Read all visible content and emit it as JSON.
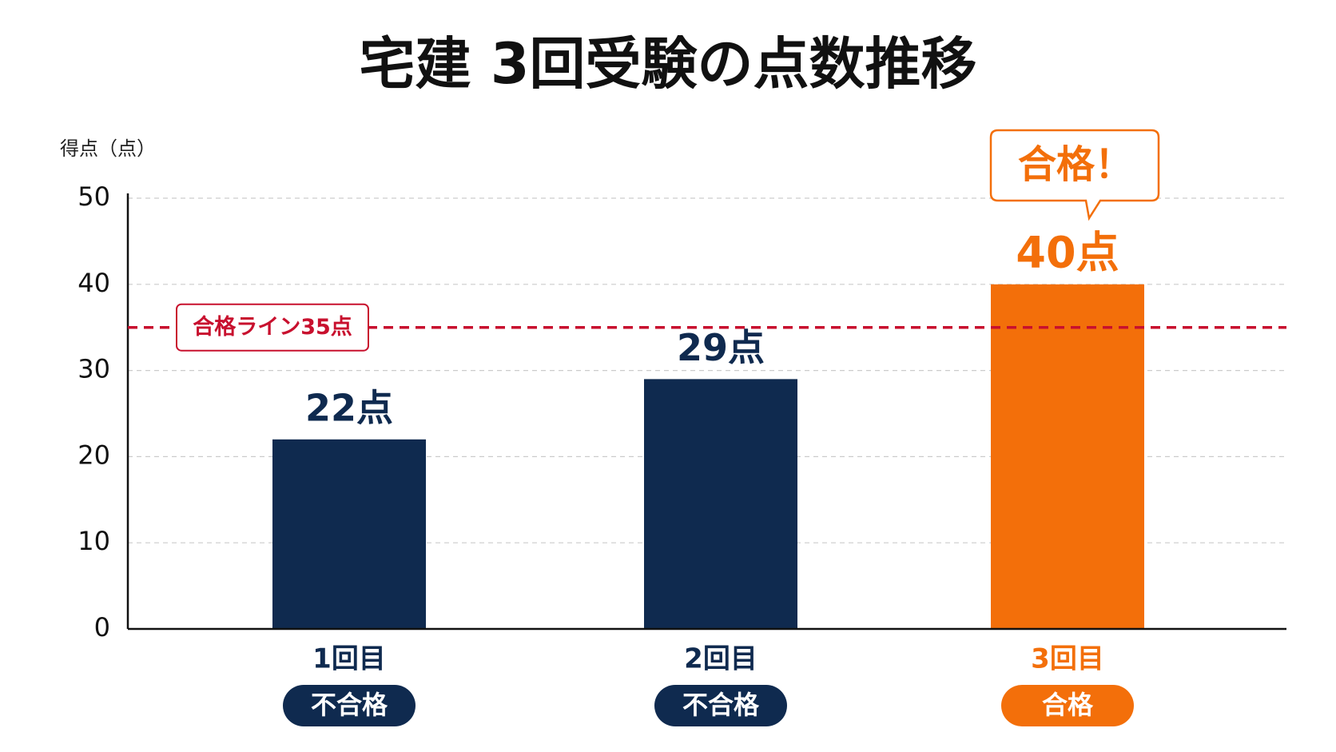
{
  "chart_data": {
    "type": "bar",
    "title": "宅建 3回受験の点数推移",
    "y_label": "得点（点）",
    "categories": [
      "1回目",
      "2回目",
      "3回目"
    ],
    "values": [
      22,
      29,
      40
    ],
    "value_labels": [
      "22点",
      "29点",
      "40点"
    ],
    "colors": [
      "#0f2a4f",
      "#0f2a4f",
      "#f36f0a"
    ],
    "status": [
      "不合格",
      "不合格",
      "合格"
    ],
    "callout": "合格！",
    "pass_line": {
      "value": 35,
      "label": "合格ライン35点",
      "color": "#c8102e"
    },
    "ylim": [
      0,
      50
    ],
    "yticks": [
      0,
      10,
      20,
      30,
      40,
      50
    ],
    "grid": true
  }
}
